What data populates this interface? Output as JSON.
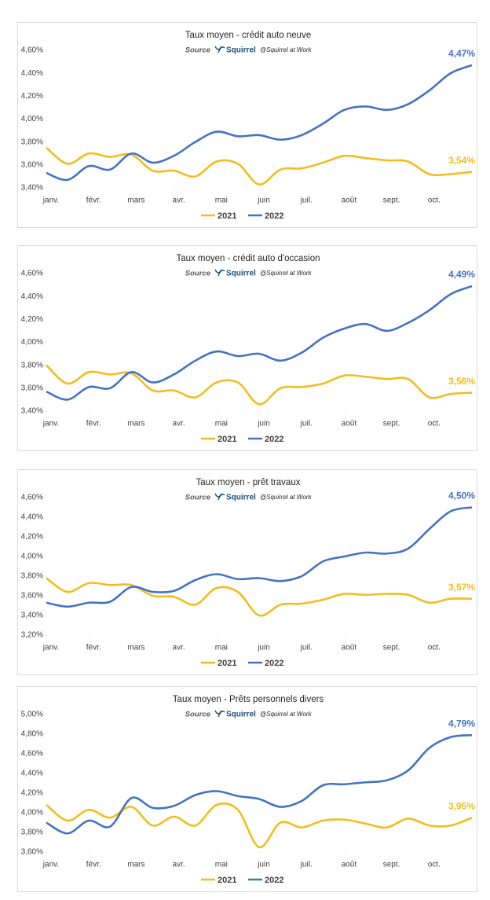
{
  "chart_data": [
    {
      "type": "line",
      "title": "Taux moyen - crédit auto neuve",
      "source_label": "Source",
      "source_brand": "Squirrel",
      "source_note": "@Squirrel at Work",
      "x": [
        0,
        0.5,
        1,
        1.5,
        2,
        2.5,
        3,
        3.5,
        4,
        4.5,
        5,
        5.5,
        6,
        6.5,
        7,
        7.5,
        8,
        8.5,
        9,
        9.5,
        10
      ],
      "xlim": [
        0,
        10
      ],
      "xticks": [
        {
          "value": 0,
          "label": "janv."
        },
        {
          "value": 1,
          "label": "févr."
        },
        {
          "value": 2,
          "label": "mars"
        },
        {
          "value": 3,
          "label": "avr."
        },
        {
          "value": 4,
          "label": "mai"
        },
        {
          "value": 5,
          "label": "juin"
        },
        {
          "value": 6,
          "label": "juil."
        },
        {
          "value": 7,
          "label": "août"
        },
        {
          "value": 8,
          "label": "sept."
        },
        {
          "value": 9,
          "label": "oct."
        }
      ],
      "ylim": [
        3.4,
        4.6
      ],
      "yticks": [
        {
          "value": 3.4,
          "label": "3,40%"
        },
        {
          "value": 3.6,
          "label": "3,60%"
        },
        {
          "value": 3.8,
          "label": "3,80%"
        },
        {
          "value": 4.0,
          "label": "4,00%"
        },
        {
          "value": 4.2,
          "label": "4,20%"
        },
        {
          "value": 4.4,
          "label": "4,40%"
        },
        {
          "value": 4.6,
          "label": "4,60%"
        }
      ],
      "series": [
        {
          "name": "2021",
          "color": "#f2bd1d",
          "values": [
            3.75,
            3.61,
            3.7,
            3.67,
            3.69,
            3.55,
            3.55,
            3.5,
            3.63,
            3.61,
            3.43,
            3.56,
            3.57,
            3.62,
            3.68,
            3.66,
            3.64,
            3.63,
            3.52,
            3.52,
            3.54
          ],
          "value_labels": [
            null,
            null,
            null,
            null,
            null,
            null,
            null,
            null,
            null,
            null,
            null,
            null,
            null,
            null,
            null,
            null,
            null,
            null,
            null,
            null,
            "3,54%"
          ]
        },
        {
          "name": "2022",
          "color": "#4472c4",
          "values": [
            3.53,
            3.47,
            3.59,
            3.56,
            3.7,
            3.62,
            3.68,
            3.8,
            3.89,
            3.85,
            3.86,
            3.82,
            3.86,
            3.96,
            4.08,
            4.11,
            4.08,
            4.13,
            4.25,
            4.4,
            4.47
          ],
          "value_labels": [
            null,
            null,
            null,
            null,
            null,
            null,
            null,
            null,
            null,
            null,
            null,
            null,
            null,
            null,
            null,
            null,
            null,
            null,
            null,
            null,
            "4,47%"
          ]
        }
      ]
    },
    {
      "type": "line",
      "title": "Taux moyen - crédit auto d'occasion",
      "source_label": "Source",
      "source_brand": "Squirrel",
      "source_note": "@Squirrel at Work",
      "x": [
        0,
        0.5,
        1,
        1.5,
        2,
        2.5,
        3,
        3.5,
        4,
        4.5,
        5,
        5.5,
        6,
        6.5,
        7,
        7.5,
        8,
        8.5,
        9,
        9.5,
        10
      ],
      "xlim": [
        0,
        10
      ],
      "xticks": [
        {
          "value": 0,
          "label": "janv."
        },
        {
          "value": 1,
          "label": "févr."
        },
        {
          "value": 2,
          "label": "mars"
        },
        {
          "value": 3,
          "label": "avr."
        },
        {
          "value": 4,
          "label": "mai"
        },
        {
          "value": 5,
          "label": "juin"
        },
        {
          "value": 6,
          "label": "juil."
        },
        {
          "value": 7,
          "label": "août"
        },
        {
          "value": 8,
          "label": "sept."
        },
        {
          "value": 9,
          "label": "oct."
        }
      ],
      "ylim": [
        3.4,
        4.6
      ],
      "yticks": [
        {
          "value": 3.4,
          "label": "3,40%"
        },
        {
          "value": 3.6,
          "label": "3,60%"
        },
        {
          "value": 3.8,
          "label": "3,80%"
        },
        {
          "value": 4.0,
          "label": "4,00%"
        },
        {
          "value": 4.2,
          "label": "4,20%"
        },
        {
          "value": 4.4,
          "label": "4,40%"
        },
        {
          "value": 4.6,
          "label": "4,60%"
        }
      ],
      "series": [
        {
          "name": "2021",
          "color": "#f2bd1d",
          "values": [
            3.8,
            3.64,
            3.74,
            3.72,
            3.73,
            3.58,
            3.58,
            3.52,
            3.65,
            3.65,
            3.46,
            3.6,
            3.61,
            3.64,
            3.71,
            3.7,
            3.68,
            3.68,
            3.52,
            3.55,
            3.56
          ],
          "value_labels": [
            null,
            null,
            null,
            null,
            null,
            null,
            null,
            null,
            null,
            null,
            null,
            null,
            null,
            null,
            null,
            null,
            null,
            null,
            null,
            null,
            "3,56%"
          ]
        },
        {
          "name": "2022",
          "color": "#4472c4",
          "values": [
            3.57,
            3.5,
            3.61,
            3.6,
            3.74,
            3.65,
            3.72,
            3.84,
            3.92,
            3.88,
            3.9,
            3.84,
            3.91,
            4.04,
            4.12,
            4.16,
            4.1,
            4.17,
            4.28,
            4.42,
            4.49
          ],
          "value_labels": [
            null,
            null,
            null,
            null,
            null,
            null,
            null,
            null,
            null,
            null,
            null,
            null,
            null,
            null,
            null,
            null,
            null,
            null,
            null,
            null,
            "4,49%"
          ]
        }
      ]
    },
    {
      "type": "line",
      "title": "Taux moyen - prêt travaux",
      "source_label": "Source",
      "source_brand": "Squirrel",
      "source_note": "@Squirrel at Work",
      "x": [
        0,
        0.5,
        1,
        1.5,
        2,
        2.5,
        3,
        3.5,
        4,
        4.5,
        5,
        5.5,
        6,
        6.5,
        7,
        7.5,
        8,
        8.5,
        9,
        9.5,
        10
      ],
      "xlim": [
        0,
        10
      ],
      "xticks": [
        {
          "value": 0,
          "label": "janv."
        },
        {
          "value": 1,
          "label": "févr."
        },
        {
          "value": 2,
          "label": "mars"
        },
        {
          "value": 3,
          "label": "avr."
        },
        {
          "value": 4,
          "label": "mai"
        },
        {
          "value": 5,
          "label": "juin"
        },
        {
          "value": 6,
          "label": "juil."
        },
        {
          "value": 7,
          "label": "août"
        },
        {
          "value": 8,
          "label": "sept."
        },
        {
          "value": 9,
          "label": "oct."
        }
      ],
      "ylim": [
        3.2,
        4.6
      ],
      "yticks": [
        {
          "value": 3.2,
          "label": "3,20%"
        },
        {
          "value": 3.4,
          "label": "3,40%"
        },
        {
          "value": 3.6,
          "label": "3,60%"
        },
        {
          "value": 3.8,
          "label": "3,80%"
        },
        {
          "value": 4.0,
          "label": "4,00%"
        },
        {
          "value": 4.2,
          "label": "4,20%"
        },
        {
          "value": 4.4,
          "label": "4,40%"
        },
        {
          "value": 4.6,
          "label": "4,60%"
        }
      ],
      "series": [
        {
          "name": "2021",
          "color": "#f2bd1d",
          "values": [
            3.78,
            3.64,
            3.73,
            3.71,
            3.71,
            3.6,
            3.59,
            3.51,
            3.68,
            3.64,
            3.4,
            3.51,
            3.52,
            3.56,
            3.62,
            3.61,
            3.62,
            3.61,
            3.53,
            3.57,
            3.57
          ],
          "value_labels": [
            null,
            null,
            null,
            null,
            null,
            null,
            null,
            null,
            null,
            null,
            null,
            null,
            null,
            null,
            null,
            null,
            null,
            null,
            null,
            null,
            "3,57%"
          ]
        },
        {
          "name": "2022",
          "color": "#4472c4",
          "values": [
            3.53,
            3.49,
            3.53,
            3.54,
            3.69,
            3.64,
            3.65,
            3.76,
            3.82,
            3.77,
            3.78,
            3.75,
            3.8,
            3.95,
            4.0,
            4.04,
            4.03,
            4.08,
            4.28,
            4.46,
            4.5
          ],
          "value_labels": [
            null,
            null,
            null,
            null,
            null,
            null,
            null,
            null,
            null,
            null,
            null,
            null,
            null,
            null,
            null,
            null,
            null,
            null,
            null,
            null,
            "4,50%"
          ]
        }
      ]
    },
    {
      "type": "line",
      "title": "Taux moyen - Prêts personnels divers",
      "source_label": "Source",
      "source_brand": "Squirrel",
      "source_note": "@Squirrel at Work",
      "x": [
        0,
        0.5,
        1,
        1.5,
        2,
        2.5,
        3,
        3.5,
        4,
        4.5,
        5,
        5.5,
        6,
        6.5,
        7,
        7.5,
        8,
        8.5,
        9,
        9.5,
        10
      ],
      "xlim": [
        0,
        10
      ],
      "xticks": [
        {
          "value": 0,
          "label": "janv."
        },
        {
          "value": 1,
          "label": "févr."
        },
        {
          "value": 2,
          "label": "mars"
        },
        {
          "value": 3,
          "label": "avr."
        },
        {
          "value": 4,
          "label": "mai"
        },
        {
          "value": 5,
          "label": "juin"
        },
        {
          "value": 6,
          "label": "juil."
        },
        {
          "value": 7,
          "label": "août"
        },
        {
          "value": 8,
          "label": "sept."
        },
        {
          "value": 9,
          "label": "oct."
        }
      ],
      "ylim": [
        3.6,
        5.0
      ],
      "yticks": [
        {
          "value": 3.6,
          "label": "3,60%"
        },
        {
          "value": 3.8,
          "label": "3,80%"
        },
        {
          "value": 4.0,
          "label": "4,00%"
        },
        {
          "value": 4.2,
          "label": "4,20%"
        },
        {
          "value": 4.4,
          "label": "4,40%"
        },
        {
          "value": 4.6,
          "label": "4,60%"
        },
        {
          "value": 4.8,
          "label": "4,80%"
        },
        {
          "value": 5.0,
          "label": "5,00%"
        }
      ],
      "series": [
        {
          "name": "2021",
          "color": "#f2bd1d",
          "values": [
            4.08,
            3.92,
            4.03,
            3.95,
            4.06,
            3.87,
            3.96,
            3.87,
            4.08,
            4.03,
            3.65,
            3.9,
            3.85,
            3.92,
            3.93,
            3.89,
            3.85,
            3.94,
            3.87,
            3.87,
            3.95
          ],
          "value_labels": [
            null,
            null,
            null,
            null,
            null,
            null,
            null,
            null,
            null,
            null,
            null,
            null,
            null,
            null,
            null,
            null,
            null,
            null,
            null,
            null,
            "3,95%"
          ]
        },
        {
          "name": "2022",
          "color": "#4472c4",
          "values": [
            3.9,
            3.79,
            3.92,
            3.86,
            4.15,
            4.05,
            4.07,
            4.18,
            4.22,
            4.17,
            4.14,
            4.06,
            4.12,
            4.28,
            4.29,
            4.31,
            4.33,
            4.43,
            4.66,
            4.77,
            4.79
          ],
          "value_labels": [
            null,
            null,
            null,
            null,
            null,
            null,
            null,
            null,
            null,
            null,
            null,
            null,
            null,
            null,
            null,
            null,
            null,
            null,
            null,
            null,
            "4,79%"
          ]
        }
      ]
    }
  ]
}
